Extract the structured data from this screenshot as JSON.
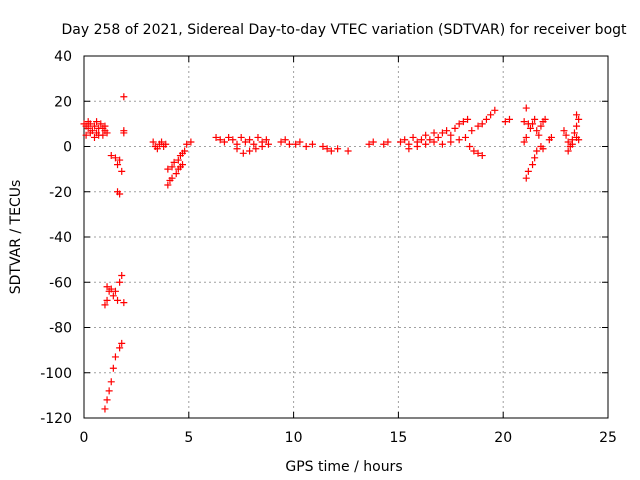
{
  "chart_data": {
    "type": "scatter",
    "title": "Day 258 of 2021, Sidereal Day-to-day VTEC variation (SDTVAR) for receiver bogt",
    "xlabel": "GPS time / hours",
    "ylabel": "SDTVAR / TECUs",
    "xlim": [
      0,
      25
    ],
    "ylim": [
      -120,
      40
    ],
    "xticks": [
      "0",
      "5",
      "10",
      "15",
      "20",
      "25"
    ],
    "yticks": [
      "40",
      "20",
      "0",
      "-20",
      "-40",
      "-60",
      "-80",
      "-100",
      "-120"
    ],
    "grid": true,
    "marker": "+",
    "color": "#ff0000",
    "series": [
      {
        "name": "SDTVAR",
        "points": [
          [
            0.0,
            10
          ],
          [
            0.1,
            9
          ],
          [
            0.2,
            8
          ],
          [
            0.3,
            10
          ],
          [
            0.4,
            7
          ],
          [
            0.5,
            9
          ],
          [
            0.6,
            6
          ],
          [
            0.7,
            8
          ],
          [
            0.8,
            10
          ],
          [
            0.9,
            5
          ],
          [
            1.0,
            7
          ],
          [
            1.1,
            6
          ],
          [
            0.1,
            5
          ],
          [
            0.3,
            6
          ],
          [
            0.5,
            4
          ],
          [
            0.7,
            5
          ],
          [
            0.9,
            8
          ],
          [
            1.0,
            9
          ],
          [
            0.2,
            11
          ],
          [
            0.6,
            11
          ],
          [
            1.3,
            -4
          ],
          [
            1.5,
            -5
          ],
          [
            1.6,
            -8
          ],
          [
            1.7,
            -6
          ],
          [
            1.8,
            -11
          ],
          [
            1.6,
            -20
          ],
          [
            1.7,
            -21
          ],
          [
            1.9,
            22
          ],
          [
            1.9,
            7
          ],
          [
            1.9,
            6
          ],
          [
            1.1,
            -62
          ],
          [
            1.2,
            -64
          ],
          [
            1.3,
            -63
          ],
          [
            1.4,
            -66
          ],
          [
            1.0,
            -70
          ],
          [
            1.1,
            -68
          ],
          [
            1.5,
            -64
          ],
          [
            1.8,
            -57
          ],
          [
            1.7,
            -60
          ],
          [
            1.9,
            -69
          ],
          [
            1.6,
            -68
          ],
          [
            1.0,
            -116
          ],
          [
            1.1,
            -112
          ],
          [
            1.2,
            -108
          ],
          [
            1.3,
            -104
          ],
          [
            1.4,
            -98
          ],
          [
            1.5,
            -93
          ],
          [
            1.7,
            -89
          ],
          [
            1.8,
            -87
          ],
          [
            3.3,
            2
          ],
          [
            3.4,
            0
          ],
          [
            3.5,
            -1
          ],
          [
            3.6,
            1
          ],
          [
            3.7,
            2
          ],
          [
            3.8,
            0
          ],
          [
            3.9,
            1
          ],
          [
            4.0,
            -17
          ],
          [
            4.1,
            -15
          ],
          [
            4.2,
            -14
          ],
          [
            4.4,
            -12
          ],
          [
            4.5,
            -10
          ],
          [
            4.6,
            -9
          ],
          [
            4.7,
            -8
          ],
          [
            4.0,
            -10
          ],
          [
            4.2,
            -9
          ],
          [
            4.3,
            -7
          ],
          [
            4.5,
            -6
          ],
          [
            4.6,
            -4
          ],
          [
            4.7,
            -3
          ],
          [
            4.8,
            -2
          ],
          [
            4.9,
            1
          ],
          [
            5.1,
            2
          ],
          [
            6.3,
            4
          ],
          [
            6.5,
            3
          ],
          [
            6.7,
            2
          ],
          [
            6.9,
            4
          ],
          [
            7.1,
            3
          ],
          [
            7.3,
            1
          ],
          [
            7.5,
            4
          ],
          [
            7.7,
            2
          ],
          [
            7.9,
            3
          ],
          [
            8.1,
            1
          ],
          [
            8.3,
            4
          ],
          [
            8.5,
            2
          ],
          [
            8.7,
            3
          ],
          [
            7.3,
            -1
          ],
          [
            7.6,
            -3
          ],
          [
            7.9,
            -2
          ],
          [
            8.2,
            -1
          ],
          [
            8.5,
            0
          ],
          [
            8.8,
            1
          ],
          [
            9.4,
            2
          ],
          [
            9.6,
            3
          ],
          [
            9.8,
            1
          ],
          [
            10.1,
            1
          ],
          [
            10.3,
            2
          ],
          [
            10.6,
            0
          ],
          [
            10.9,
            1
          ],
          [
            11.4,
            0
          ],
          [
            11.6,
            -1
          ],
          [
            11.8,
            -2
          ],
          [
            12.1,
            -1
          ],
          [
            12.6,
            -2
          ],
          [
            13.6,
            1
          ],
          [
            13.8,
            2
          ],
          [
            14.3,
            1
          ],
          [
            14.5,
            2
          ],
          [
            15.1,
            2
          ],
          [
            15.3,
            3
          ],
          [
            15.5,
            1
          ],
          [
            15.7,
            4
          ],
          [
            15.9,
            2
          ],
          [
            16.1,
            3
          ],
          [
            16.3,
            5
          ],
          [
            16.5,
            3
          ],
          [
            16.7,
            6
          ],
          [
            16.9,
            4
          ],
          [
            17.1,
            6
          ],
          [
            17.3,
            7
          ],
          [
            17.5,
            5
          ],
          [
            17.7,
            8
          ],
          [
            17.9,
            10
          ],
          [
            18.1,
            11
          ],
          [
            18.3,
            12
          ],
          [
            15.5,
            -1
          ],
          [
            15.9,
            0
          ],
          [
            16.3,
            1
          ],
          [
            16.7,
            2
          ],
          [
            17.1,
            1
          ],
          [
            17.5,
            2
          ],
          [
            17.9,
            3
          ],
          [
            18.2,
            4
          ],
          [
            18.4,
            0
          ],
          [
            18.6,
            -2
          ],
          [
            18.8,
            -3
          ],
          [
            19.0,
            -4
          ],
          [
            18.5,
            7
          ],
          [
            18.8,
            9
          ],
          [
            19.0,
            10
          ],
          [
            19.2,
            12
          ],
          [
            19.4,
            14
          ],
          [
            19.6,
            16
          ],
          [
            20.1,
            11
          ],
          [
            20.3,
            12
          ],
          [
            21.1,
            17
          ],
          [
            21.0,
            11
          ],
          [
            21.2,
            10
          ],
          [
            21.3,
            8
          ],
          [
            21.0,
            2
          ],
          [
            21.1,
            4
          ],
          [
            21.1,
            -14
          ],
          [
            21.2,
            -11
          ],
          [
            21.4,
            -8
          ],
          [
            21.5,
            -5
          ],
          [
            21.6,
            -2
          ],
          [
            21.8,
            0
          ],
          [
            21.9,
            -1
          ],
          [
            21.4,
            10
          ],
          [
            21.5,
            12
          ],
          [
            21.6,
            7
          ],
          [
            21.7,
            5
          ],
          [
            21.8,
            9
          ],
          [
            21.9,
            11
          ],
          [
            22.0,
            12
          ],
          [
            22.2,
            3
          ],
          [
            22.3,
            4
          ],
          [
            22.9,
            7
          ],
          [
            23.0,
            5
          ],
          [
            23.1,
            2
          ],
          [
            23.2,
            0
          ],
          [
            23.3,
            3
          ],
          [
            23.4,
            6
          ],
          [
            23.5,
            9
          ],
          [
            23.6,
            12
          ],
          [
            23.5,
            14
          ],
          [
            23.1,
            -2
          ],
          [
            23.3,
            1
          ],
          [
            23.5,
            4
          ],
          [
            23.6,
            3
          ]
        ]
      }
    ]
  }
}
